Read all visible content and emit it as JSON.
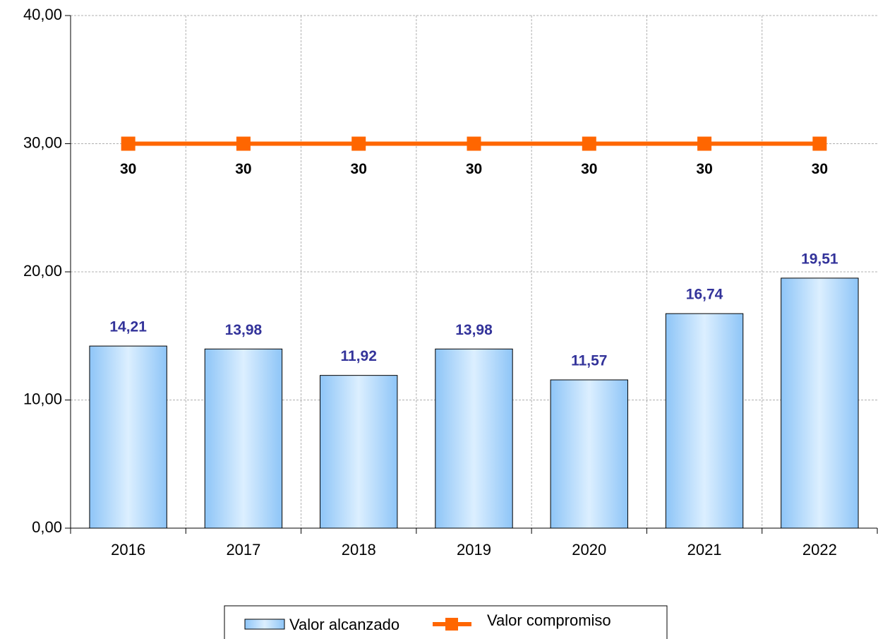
{
  "chart_data": {
    "type": "bar",
    "categories": [
      "2016",
      "2017",
      "2018",
      "2019",
      "2020",
      "2021",
      "2022"
    ],
    "series": [
      {
        "name": "Valor alcanzado",
        "type": "bar",
        "color": "#9fd0fa",
        "values": [
          14.21,
          13.98,
          11.92,
          13.98,
          11.57,
          16.74,
          19.51
        ],
        "value_labels": [
          "14,21",
          "13,98",
          "11,92",
          "13,98",
          "11,57",
          "16,74",
          "19,51"
        ]
      },
      {
        "name": "Valor compromiso",
        "type": "line",
        "color": "#ff6600",
        "values": [
          30,
          30,
          30,
          30,
          30,
          30,
          30
        ]
      }
    ],
    "ylim": [
      0,
      40
    ],
    "yticks": [
      {
        "value": 0,
        "label": "0,00"
      },
      {
        "value": 10,
        "label": "10,00"
      },
      {
        "value": 20,
        "label": "20,00"
      },
      {
        "value": 30,
        "label": "30,00"
      },
      {
        "value": 40,
        "label": "40,00"
      }
    ],
    "grid": true,
    "legend": "bottom"
  }
}
